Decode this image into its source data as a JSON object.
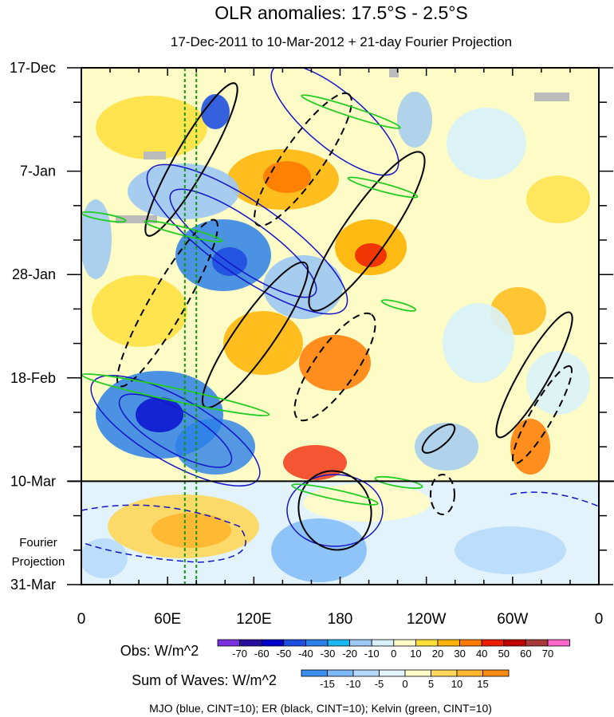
{
  "chart_data": {
    "type": "heatmap",
    "title": "OLR anomalies: 17.5°S - 2.5°S",
    "subtitle": "17-Dec-2011 to 10-Mar-2012 + 21-day Fourier Projection",
    "x_axis": {
      "labels": [
        "0",
        "60E",
        "120E",
        "180",
        "120W",
        "60W",
        "0"
      ],
      "longitudes": [
        0,
        60,
        120,
        180,
        240,
        300,
        360
      ]
    },
    "y_axis": {
      "labels": [
        "17-Dec",
        "7-Jan",
        "28-Jan",
        "18-Feb",
        "10-Mar",
        "31-Mar"
      ],
      "day_offsets": [
        0,
        21,
        42,
        63,
        84,
        105
      ]
    },
    "projection_start": "10-Mar",
    "projection_label": [
      "Fourier",
      "Projection"
    ],
    "reference_longitudes": [
      72,
      80
    ],
    "obs_colorbar": {
      "label": "Obs: W/m^2",
      "ticks": [
        "-70",
        "-60",
        "-50",
        "-40",
        "-30",
        "-20",
        "-10",
        "0",
        "10",
        "20",
        "30",
        "40",
        "50",
        "60",
        "70"
      ],
      "colors": [
        "#7a2fe0",
        "#2a0f9e",
        "#0000cd",
        "#1f4fe0",
        "#2b7fe8",
        "#1ab8f0",
        "#9cc8f4",
        "#d8f2fb",
        "#fdfbc6",
        "#ffdf3a",
        "#ffb300",
        "#ff7a00",
        "#f01e00",
        "#c00000",
        "#a83a3a",
        "#ff66cc"
      ]
    },
    "waves_colorbar": {
      "label": "Sum of Waves: W/m^2",
      "ticks": [
        "-15",
        "-10",
        "-5",
        "0",
        "5",
        "10",
        "15"
      ],
      "colors": [
        "#3a8ff0",
        "#7ab8f6",
        "#b3d8fa",
        "#e2f3fc",
        "#fdfbc6",
        "#ffd75a",
        "#ffb52e",
        "#ff8a14"
      ]
    },
    "footer": "MJO (blue, CINT=10); ER (black, CINT=10); Kelvin (green, CINT=10)",
    "series": [
      {
        "name": "MJO",
        "color": "#1414c8",
        "cint": 10
      },
      {
        "name": "ER",
        "color": "#000000",
        "cint": 10
      },
      {
        "name": "Kelvin",
        "color": "#22cc22",
        "cint": 10
      }
    ]
  }
}
